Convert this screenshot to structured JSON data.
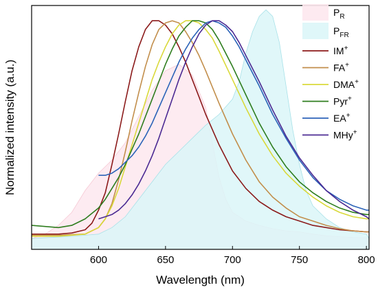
{
  "chart_data": {
    "type": "line",
    "xlabel": "Wavelength (nm)",
    "ylabel": "Normalized intensity (a.u.)",
    "xlim": [
      550,
      802
    ],
    "ylim": [
      -0.05,
      1.07
    ],
    "x_ticks": [
      "600",
      "650",
      "700",
      "750",
      "800"
    ],
    "y_ticks_shown": false,
    "grid": false,
    "legend_placement": "top-right",
    "areas": [
      {
        "name": "P_R",
        "base": "P",
        "sub": "R",
        "fill": "#fde8ee",
        "stroke": "#f6c9d4",
        "x": [
          550,
          560,
          570,
          580,
          590,
          600,
          610,
          620,
          630,
          640,
          650,
          660,
          670,
          680,
          685,
          690,
          695,
          700,
          710,
          720,
          730,
          740,
          750,
          760,
          770,
          780,
          790,
          800,
          802
        ],
        "y": [
          0.0,
          0.02,
          0.06,
          0.12,
          0.22,
          0.3,
          0.36,
          0.44,
          0.56,
          0.68,
          0.77,
          0.8,
          0.75,
          0.6,
          0.44,
          0.28,
          0.18,
          0.12,
          0.08,
          0.06,
          0.045,
          0.035,
          0.03,
          0.02,
          0.012,
          0.008,
          0.005,
          0.003,
          0.0
        ]
      },
      {
        "name": "P_FR",
        "base": "P",
        "sub": "FR",
        "fill": "#dbf6f8",
        "stroke": "#a7e1e8",
        "x": [
          550,
          580,
          600,
          610,
          620,
          630,
          640,
          650,
          660,
          670,
          680,
          690,
          700,
          705,
          710,
          715,
          720,
          725,
          730,
          735,
          740,
          745,
          750,
          755,
          760,
          770,
          780,
          790,
          800,
          802
        ],
        "y": [
          0.0,
          0.01,
          0.02,
          0.05,
          0.1,
          0.18,
          0.26,
          0.34,
          0.4,
          0.46,
          0.52,
          0.57,
          0.64,
          0.72,
          0.85,
          0.95,
          1.02,
          1.05,
          1.02,
          0.9,
          0.7,
          0.5,
          0.34,
          0.22,
          0.15,
          0.09,
          0.05,
          0.03,
          0.02,
          0.0
        ]
      }
    ],
    "series": [
      {
        "name": "IM+",
        "base": "IM",
        "sup": "+",
        "color": "#8b1a1a",
        "x": [
          550,
          570,
          580,
          590,
          595,
          600,
          605,
          610,
          615,
          620,
          625,
          630,
          635,
          640,
          645,
          650,
          655,
          660,
          665,
          670,
          675,
          680,
          690,
          700,
          710,
          720,
          730,
          740,
          750,
          760,
          770,
          780,
          790,
          800,
          802
        ],
        "y": [
          0.02,
          0.02,
          0.025,
          0.04,
          0.07,
          0.13,
          0.21,
          0.34,
          0.48,
          0.63,
          0.77,
          0.88,
          0.96,
          1.0,
          1.0,
          0.98,
          0.94,
          0.88,
          0.81,
          0.73,
          0.65,
          0.57,
          0.43,
          0.31,
          0.23,
          0.17,
          0.13,
          0.1,
          0.08,
          0.06,
          0.05,
          0.04,
          0.035,
          0.03,
          0.03
        ]
      },
      {
        "name": "FA+",
        "base": "FA",
        "sup": "+",
        "color": "#c28e4b",
        "x": [
          550,
          570,
          590,
          600,
          605,
          610,
          615,
          620,
          625,
          630,
          635,
          640,
          645,
          650,
          655,
          660,
          665,
          670,
          675,
          680,
          690,
          700,
          710,
          720,
          730,
          740,
          750,
          760,
          770,
          780,
          790,
          800,
          802
        ],
        "y": [
          0.015,
          0.015,
          0.02,
          0.05,
          0.09,
          0.16,
          0.27,
          0.4,
          0.54,
          0.67,
          0.79,
          0.89,
          0.96,
          0.99,
          1.0,
          0.99,
          0.95,
          0.9,
          0.84,
          0.77,
          0.62,
          0.48,
          0.36,
          0.26,
          0.19,
          0.14,
          0.1,
          0.08,
          0.06,
          0.045,
          0.035,
          0.03,
          0.03
        ]
      },
      {
        "name": "DMA+",
        "base": "DMA",
        "sup": "+",
        "color": "#d9d93a",
        "x": [
          550,
          570,
          590,
          600,
          605,
          610,
          615,
          620,
          625,
          630,
          635,
          640,
          645,
          650,
          655,
          660,
          665,
          670,
          675,
          680,
          685,
          690,
          700,
          710,
          720,
          730,
          740,
          750,
          760,
          770,
          780,
          790,
          800,
          802
        ],
        "y": [
          0.01,
          0.01,
          0.02,
          0.05,
          0.09,
          0.15,
          0.23,
          0.33,
          0.43,
          0.53,
          0.63,
          0.73,
          0.81,
          0.88,
          0.94,
          0.98,
          1.0,
          1.0,
          0.99,
          0.96,
          0.92,
          0.86,
          0.73,
          0.6,
          0.48,
          0.38,
          0.3,
          0.24,
          0.19,
          0.15,
          0.12,
          0.1,
          0.09,
          0.09
        ]
      },
      {
        "name": "Pyr+",
        "base": "Pyr",
        "sup": "+",
        "color": "#2e7d1e",
        "x": [
          550,
          560,
          570,
          580,
          590,
          600,
          605,
          610,
          615,
          620,
          625,
          630,
          635,
          640,
          645,
          650,
          655,
          660,
          665,
          670,
          675,
          680,
          685,
          690,
          700,
          710,
          720,
          730,
          740,
          750,
          760,
          770,
          780,
          790,
          800,
          802
        ],
        "y": [
          0.06,
          0.055,
          0.05,
          0.06,
          0.09,
          0.14,
          0.18,
          0.23,
          0.28,
          0.34,
          0.41,
          0.48,
          0.56,
          0.64,
          0.72,
          0.8,
          0.87,
          0.93,
          0.97,
          1.0,
          1.0,
          0.99,
          0.96,
          0.91,
          0.79,
          0.66,
          0.53,
          0.42,
          0.33,
          0.26,
          0.21,
          0.17,
          0.14,
          0.12,
          0.11,
          0.11
        ]
      },
      {
        "name": "EA+",
        "base": "EA",
        "sup": "+",
        "color": "#2b63b8",
        "x": [
          600,
          605,
          610,
          615,
          620,
          625,
          630,
          635,
          640,
          645,
          650,
          655,
          660,
          665,
          670,
          675,
          680,
          685,
          690,
          695,
          700,
          705,
          710,
          720,
          730,
          740,
          750,
          760,
          770,
          780,
          790,
          800,
          802
        ],
        "y": [
          0.29,
          0.29,
          0.3,
          0.32,
          0.35,
          0.38,
          0.42,
          0.47,
          0.53,
          0.6,
          0.67,
          0.74,
          0.81,
          0.87,
          0.92,
          0.96,
          0.99,
          1.0,
          0.99,
          0.97,
          0.93,
          0.88,
          0.82,
          0.7,
          0.57,
          0.46,
          0.36,
          0.28,
          0.22,
          0.18,
          0.15,
          0.13,
          0.13
        ]
      },
      {
        "name": "MHy+",
        "base": "MHy",
        "sup": "+",
        "color": "#4b2a93",
        "x": [
          600,
          605,
          610,
          615,
          620,
          625,
          630,
          635,
          640,
          645,
          650,
          655,
          660,
          665,
          670,
          675,
          680,
          685,
          690,
          695,
          700,
          705,
          710,
          720,
          730,
          740,
          750,
          760,
          770,
          780,
          790,
          800,
          802
        ],
        "y": [
          0.09,
          0.1,
          0.11,
          0.13,
          0.16,
          0.2,
          0.25,
          0.31,
          0.38,
          0.46,
          0.55,
          0.64,
          0.73,
          0.81,
          0.88,
          0.94,
          0.98,
          1.0,
          1.0,
          0.98,
          0.95,
          0.9,
          0.84,
          0.72,
          0.59,
          0.47,
          0.37,
          0.29,
          0.22,
          0.17,
          0.13,
          0.1,
          0.09
        ]
      }
    ]
  }
}
